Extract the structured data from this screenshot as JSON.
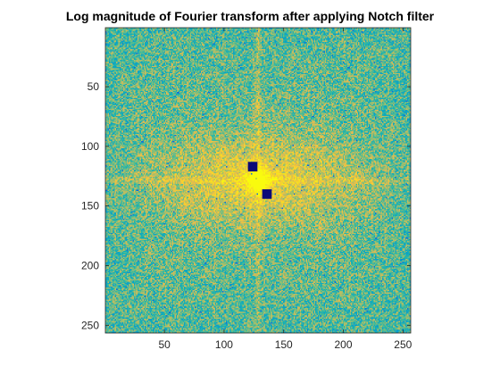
{
  "chart_data": {
    "type": "heatmap",
    "title": "Log magnitude of Fourier transform after applying Notch filter",
    "xlabel": "",
    "ylabel": "",
    "xlim": [
      0.5,
      256.5
    ],
    "ylim": [
      0.5,
      256.5
    ],
    "y_reversed": true,
    "colormap": "parula",
    "xticks": [
      50,
      100,
      150,
      200,
      250
    ],
    "yticks": [
      50,
      100,
      150,
      200,
      250
    ],
    "grid": false,
    "notch_markers": [
      {
        "x": 124,
        "y": 117,
        "size": 8
      },
      {
        "x": 136,
        "y": 140,
        "size": 8
      }
    ]
  },
  "colors": {
    "axis": "#262626",
    "notch": "#0a0a78"
  }
}
